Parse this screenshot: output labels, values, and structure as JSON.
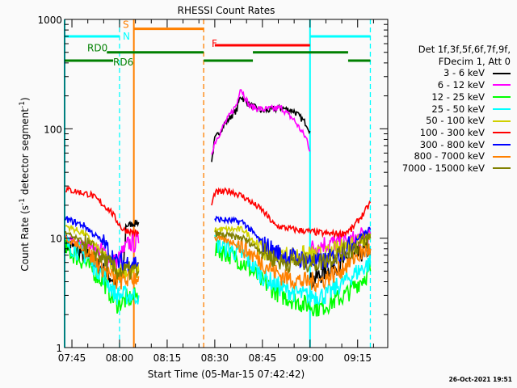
{
  "chart_data": {
    "type": "line",
    "title": "RHESSI Count Rates",
    "xlabel": "Start Time (05-Mar-15 07:42:42)",
    "ylabel": "Count Rate (s",
    "ylabel_sup": "-1",
    "ylabel_mid": " detector segment",
    "ylabel_sup2": "-1",
    "ylabel_end": ")",
    "xlim": [
      "07:42:42",
      "09:24:30"
    ],
    "ylim": [
      1,
      1000
    ],
    "yscale": "log",
    "x_ticks": [
      "07:45",
      "08:00",
      "08:15",
      "08:30",
      "08:45",
      "09:00",
      "09:15"
    ],
    "y_ticks": [
      "1",
      "10",
      "100",
      "1000"
    ],
    "legend_header": [
      "Det 1f,3f,5f,6f,7f,9f,",
      "FDecim 1, Att 0"
    ],
    "legend_position": "right",
    "series": [
      {
        "name": "3 - 6 keV",
        "color": "#000000",
        "segments": [
          [
            [
              "07:43",
              9
            ],
            [
              "07:49",
              7
            ],
            [
              "07:55",
              5
            ],
            [
              "07:59",
              4
            ],
            [
              "08:01",
              4
            ],
            [
              "08:02",
              13
            ],
            [
              "08:06",
              14
            ]
          ],
          [
            [
              "08:29",
              50
            ],
            [
              "08:30",
              80
            ],
            [
              "08:33",
              110
            ],
            [
              "08:37",
              150
            ],
            [
              "08:38",
              200
            ],
            [
              "08:41",
              165
            ],
            [
              "08:45",
              145
            ],
            [
              "08:51",
              155
            ],
            [
              "08:55",
              145
            ],
            [
              "08:59",
              110
            ],
            [
              "09:00",
              95
            ]
          ],
          [
            [
              "09:00",
              4
            ],
            [
              "09:05",
              5
            ],
            [
              "09:10",
              6
            ],
            [
              "09:15",
              7
            ],
            [
              "09:19",
              8
            ]
          ]
        ]
      },
      {
        "name": "6 - 12 keV",
        "color": "#ff00ff",
        "segments": [
          [
            [
              "07:43",
              10
            ],
            [
              "07:53",
              8
            ],
            [
              "07:59",
              6
            ],
            [
              "08:03",
              9
            ],
            [
              "08:06",
              9
            ]
          ],
          [
            [
              "08:29",
              60
            ],
            [
              "08:30",
              75
            ],
            [
              "08:33",
              110
            ],
            [
              "08:37",
              170
            ],
            [
              "08:38",
              240
            ],
            [
              "08:41",
              160
            ],
            [
              "08:45",
              150
            ],
            [
              "08:51",
              155
            ],
            [
              "08:55",
              120
            ],
            [
              "08:59",
              80
            ],
            [
              "09:00",
              62
            ]
          ],
          [
            [
              "09:00",
              8
            ],
            [
              "09:05",
              9
            ],
            [
              "09:11",
              9
            ],
            [
              "09:19",
              11
            ]
          ]
        ]
      },
      {
        "name": "12 - 25 keV",
        "color": "#00ff00",
        "segments": [
          [
            [
              "07:43",
              8
            ],
            [
              "07:49",
              6
            ],
            [
              "07:55",
              4
            ],
            [
              "07:59",
              2.5
            ],
            [
              "08:06",
              3
            ]
          ],
          [
            [
              "08:30",
              8
            ],
            [
              "08:35",
              7
            ],
            [
              "08:39",
              6
            ],
            [
              "08:45",
              4
            ],
            [
              "08:51",
              3
            ],
            [
              "08:58",
              2.5
            ],
            [
              "09:03",
              2.3
            ],
            [
              "09:11",
              3
            ],
            [
              "09:19",
              5
            ]
          ]
        ]
      },
      {
        "name": "25 - 50 keV",
        "color": "#00ffff",
        "segments": [
          [
            [
              "07:43",
              9
            ],
            [
              "07:49",
              7
            ],
            [
              "07:55",
              4.5
            ],
            [
              "07:59",
              3
            ],
            [
              "08:06",
              3
            ]
          ],
          [
            [
              "08:30",
              9
            ],
            [
              "08:39",
              7
            ],
            [
              "08:45",
              4.5
            ],
            [
              "08:51",
              3.5
            ],
            [
              "08:58",
              3
            ],
            [
              "09:05",
              3
            ],
            [
              "09:13",
              4.5
            ],
            [
              "09:19",
              6
            ]
          ]
        ]
      },
      {
        "name": "50 - 100 keV",
        "color": "#d0d000",
        "segments": [
          [
            [
              "07:43",
              13
            ],
            [
              "07:49",
              11
            ],
            [
              "07:55",
              7
            ],
            [
              "07:59",
              5
            ],
            [
              "08:06",
              5
            ]
          ],
          [
            [
              "08:30",
              12
            ],
            [
              "08:39",
              12
            ],
            [
              "08:43",
              9
            ],
            [
              "08:47",
              7
            ],
            [
              "08:58",
              7
            ],
            [
              "09:05",
              7
            ],
            [
              "09:13",
              9
            ],
            [
              "09:19",
              11
            ]
          ]
        ]
      },
      {
        "name": "100 - 300 keV",
        "color": "#ff0000",
        "segments": [
          [
            [
              "07:43",
              28
            ],
            [
              "07:51",
              25
            ],
            [
              "07:57",
              18
            ],
            [
              "08:01",
              12
            ],
            [
              "08:06",
              11
            ]
          ],
          [
            [
              "08:29",
              20
            ],
            [
              "08:30",
              26
            ],
            [
              "08:35",
              27
            ],
            [
              "08:39",
              24
            ],
            [
              "08:45",
              18
            ],
            [
              "08:49",
              13
            ],
            [
              "08:55",
              12
            ],
            [
              "09:05",
              11
            ],
            [
              "09:10",
              11
            ],
            [
              "09:13",
              12
            ],
            [
              "09:17",
              17
            ],
            [
              "09:19",
              21
            ]
          ]
        ]
      },
      {
        "name": "300 - 800 keV",
        "color": "#0000ff",
        "segments": [
          [
            [
              "07:43",
              15
            ],
            [
              "07:49",
              13
            ],
            [
              "07:55",
              9
            ],
            [
              "07:59",
              6
            ],
            [
              "08:06",
              6
            ]
          ],
          [
            [
              "08:30",
              15
            ],
            [
              "08:39",
              14
            ],
            [
              "08:45",
              9
            ],
            [
              "08:51",
              7
            ],
            [
              "09:03",
              6
            ],
            [
              "09:09",
              7
            ],
            [
              "09:15",
              10
            ],
            [
              "09:19",
              12
            ]
          ]
        ]
      },
      {
        "name": "800 - 7000 keV",
        "color": "#ff8000",
        "segments": [
          [
            [
              "07:43",
              10
            ],
            [
              "07:49",
              8
            ],
            [
              "07:53",
              6
            ],
            [
              "07:59",
              4
            ],
            [
              "08:06",
              4.5
            ]
          ],
          [
            [
              "08:30",
              10
            ],
            [
              "08:37",
              9
            ],
            [
              "08:45",
              6
            ],
            [
              "08:51",
              4.5
            ],
            [
              "08:58",
              4
            ],
            [
              "09:03",
              4
            ],
            [
              "09:09",
              5
            ],
            [
              "09:15",
              7
            ],
            [
              "09:19",
              8
            ]
          ]
        ]
      },
      {
        "name": "7000 - 15000 keV",
        "color": "#808000",
        "segments": [
          [
            [
              "07:43",
              11
            ],
            [
              "07:49",
              9
            ],
            [
              "07:55",
              6.5
            ],
            [
              "07:59",
              5
            ],
            [
              "08:06",
              5
            ]
          ],
          [
            [
              "08:30",
              11
            ],
            [
              "08:39",
              10
            ],
            [
              "08:45",
              7.5
            ],
            [
              "08:51",
              6
            ],
            [
              "09:03",
              6
            ],
            [
              "09:13",
              8
            ],
            [
              "09:19",
              10
            ]
          ]
        ]
      }
    ],
    "annotations": {
      "bars": [
        {
          "label": "N",
          "color": "#00ffff",
          "level": 700,
          "ranges": [
            [
              "07:42:42",
              "08:00"
            ],
            [
              "09:00",
              "09:19"
            ]
          ]
        },
        {
          "label": "S",
          "color": "#ff8000",
          "level": 820,
          "ranges": [
            [
              "08:04:30",
              "08:26:30"
            ]
          ]
        },
        {
          "label": "F",
          "color": "#ff0000",
          "level": 580,
          "ranges": [
            [
              "08:30",
              "09:00"
            ]
          ]
        },
        {
          "label": "RD0",
          "color": "#008000",
          "level": 500,
          "ranges": [
            [
              "07:56",
              "08:26:30"
            ],
            [
              "08:42",
              "09:12"
            ]
          ]
        },
        {
          "label": "RD6",
          "color": "#008000",
          "level": 420,
          "ranges": [
            [
              "07:42:42",
              "07:58"
            ],
            [
              "08:26:30",
              "08:42"
            ],
            [
              "09:12",
              "09:19"
            ]
          ]
        }
      ],
      "vlines": [
        {
          "time": "07:42:42",
          "color": "#00ffff",
          "style": "solid"
        },
        {
          "time": "08:00",
          "color": "#00ffff",
          "style": "dashed"
        },
        {
          "time": "08:04:30",
          "color": "#ff8000",
          "style": "solid"
        },
        {
          "time": "08:26:30",
          "color": "#ff8000",
          "style": "dashed"
        },
        {
          "time": "09:00",
          "color": "#00ffff",
          "style": "solid"
        },
        {
          "time": "09:19",
          "color": "#00ffff",
          "style": "dashed"
        }
      ]
    }
  },
  "footer": {
    "timestamp": "26-Oct-2021 19:51"
  }
}
